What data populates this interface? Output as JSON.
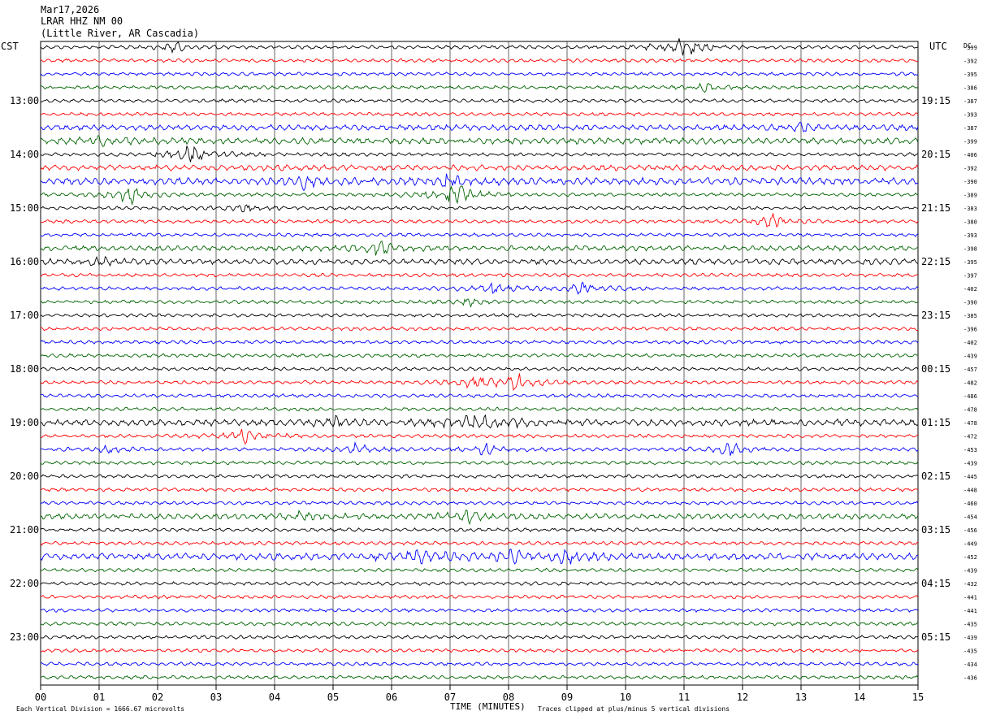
{
  "header": {
    "line1": "Mar17,2026",
    "line2": "LRAR HHZ NM 00",
    "line3": "(Little River, AR Cascadia)"
  },
  "left_tz": "CST",
  "right_tz": "UTC",
  "dc_label": "DC",
  "footer": {
    "scale_note": "Each Vertical Division = 1666.67 microvolts",
    "xlabel": "TIME (MINUTES)",
    "clip_note": "Traces clipped at plus/minus 5 vertical divisions"
  },
  "colors": {
    "trace_cycle": [
      "#000000",
      "#ff0000",
      "#0000ff",
      "#006400"
    ],
    "grid": "#000000"
  },
  "chart_data": {
    "type": "line",
    "title": "LRAR HHZ NM 00",
    "xlabel": "TIME (MINUTES)",
    "xlim": [
      0,
      15
    ],
    "x_ticks": [
      "00",
      "01",
      "02",
      "03",
      "04",
      "05",
      "06",
      "07",
      "08",
      "09",
      "10",
      "11",
      "12",
      "13",
      "14",
      "15"
    ],
    "left_hour_labels": [
      {
        "row": 4,
        "label": "13:00"
      },
      {
        "row": 8,
        "label": "14:00"
      },
      {
        "row": 12,
        "label": "15:00"
      },
      {
        "row": 16,
        "label": "16:00"
      },
      {
        "row": 20,
        "label": "17:00"
      },
      {
        "row": 24,
        "label": "18:00"
      },
      {
        "row": 28,
        "label": "19:00"
      },
      {
        "row": 32,
        "label": "20:00"
      },
      {
        "row": 36,
        "label": "21:00"
      },
      {
        "row": 40,
        "label": "22:00"
      },
      {
        "row": 44,
        "label": "23:00"
      }
    ],
    "right_hour_labels": [
      {
        "row": 4,
        "label": "19:15"
      },
      {
        "row": 8,
        "label": "20:15"
      },
      {
        "row": 12,
        "label": "21:15"
      },
      {
        "row": 16,
        "label": "22:15"
      },
      {
        "row": 20,
        "label": "23:15"
      },
      {
        "row": 24,
        "label": "00:15"
      },
      {
        "row": 28,
        "label": "01:15"
      },
      {
        "row": 32,
        "label": "02:15"
      },
      {
        "row": 36,
        "label": "03:15"
      },
      {
        "row": 40,
        "label": "04:15"
      },
      {
        "row": 44,
        "label": "05:15"
      }
    ],
    "dc_offsets": [
      "-399",
      "-392",
      "-395",
      "-386",
      "-387",
      "-393",
      "-387",
      "-399",
      "-406",
      "-392",
      "-390",
      "-389",
      "-383",
      "-380",
      "-393",
      "-398",
      "-395",
      "-397",
      "-402",
      "-390",
      "-385",
      "-396",
      "-402",
      "-439",
      "-457",
      "-482",
      "-486",
      "-478",
      "-478",
      "-472",
      "-453",
      "-439",
      "-445",
      "-448",
      "-460",
      "-454",
      "-456",
      "-449",
      "-452",
      "-439",
      "-432",
      "-441",
      "-441",
      "-435",
      "-439",
      "-435",
      "-434",
      "-436"
    ],
    "events": [
      {
        "row": 0,
        "minute": 11.0,
        "amp": 1.6
      },
      {
        "row": 0,
        "minute": 2.3,
        "amp": 0.5
      },
      {
        "row": 3,
        "minute": 11.4,
        "amp": 0.4
      },
      {
        "row": 6,
        "minute": 13.0,
        "amp": 0.4
      },
      {
        "row": 7,
        "minute": 1.0,
        "amp": 0.5
      },
      {
        "row": 8,
        "minute": 2.6,
        "amp": 1.3
      },
      {
        "row": 10,
        "minute": 4.5,
        "amp": 0.6
      },
      {
        "row": 10,
        "minute": 7.0,
        "amp": 0.8
      },
      {
        "row": 11,
        "minute": 1.5,
        "amp": 1.0
      },
      {
        "row": 11,
        "minute": 7.1,
        "amp": 1.5
      },
      {
        "row": 12,
        "minute": 3.5,
        "amp": 0.5
      },
      {
        "row": 13,
        "minute": 12.5,
        "amp": 0.8
      },
      {
        "row": 15,
        "minute": 5.8,
        "amp": 0.8
      },
      {
        "row": 16,
        "minute": 1.0,
        "amp": 0.4
      },
      {
        "row": 18,
        "minute": 7.7,
        "amp": 0.7
      },
      {
        "row": 18,
        "minute": 9.3,
        "amp": 0.8
      },
      {
        "row": 19,
        "minute": 7.3,
        "amp": 0.4
      },
      {
        "row": 25,
        "minute": 8.1,
        "amp": 1.2
      },
      {
        "row": 25,
        "minute": 7.4,
        "amp": 0.6
      },
      {
        "row": 28,
        "minute": 7.5,
        "amp": 1.8
      },
      {
        "row": 28,
        "minute": 5.0,
        "amp": 0.5
      },
      {
        "row": 29,
        "minute": 3.5,
        "amp": 1.0
      },
      {
        "row": 30,
        "minute": 5.4,
        "amp": 0.6
      },
      {
        "row": 30,
        "minute": 7.6,
        "amp": 0.6
      },
      {
        "row": 30,
        "minute": 11.8,
        "amp": 0.8
      },
      {
        "row": 30,
        "minute": 1.2,
        "amp": 0.4
      },
      {
        "row": 35,
        "minute": 7.3,
        "amp": 0.7
      },
      {
        "row": 35,
        "minute": 4.5,
        "amp": 0.4
      },
      {
        "row": 38,
        "minute": 6.5,
        "amp": 0.9
      },
      {
        "row": 38,
        "minute": 8.0,
        "amp": 0.8
      },
      {
        "row": 38,
        "minute": 9.0,
        "amp": 0.7
      }
    ],
    "noisy_rows": [
      {
        "row": 6,
        "amp": 0.35
      },
      {
        "row": 7,
        "amp": 0.45
      },
      {
        "row": 9,
        "amp": 0.35
      },
      {
        "row": 10,
        "amp": 0.6
      },
      {
        "row": 15,
        "amp": 0.3
      },
      {
        "row": 16,
        "amp": 0.35
      },
      {
        "row": 28,
        "amp": 0.5
      },
      {
        "row": 35,
        "amp": 0.35
      },
      {
        "row": 38,
        "amp": 0.55
      }
    ]
  }
}
